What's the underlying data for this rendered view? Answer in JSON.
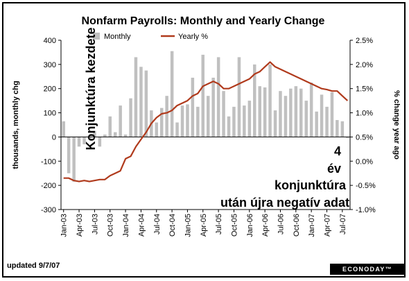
{
  "chart_data": {
    "type": "bar+line",
    "title": "Nonfarm Payrolls: Monthly and Yearly Change",
    "ylabel_left": "thousands, monthly chg",
    "ylabel_right": "% change year ago",
    "ylim_left": [
      -300,
      400
    ],
    "ylim_right": [
      -1.0,
      2.5
    ],
    "yticks_left": [
      "400",
      "300",
      "200",
      "100",
      "0",
      "-100",
      "-200",
      "-300"
    ],
    "yticks_right": [
      "2.5%",
      "2.0%",
      "1.5%",
      "1.0%",
      "0.5%",
      "0.0%",
      "-0.5%",
      "-1.0%"
    ],
    "legend": [
      "Monthly",
      "Yearly %"
    ],
    "legend_position": "top",
    "x_tick_labels": [
      "Jan-03",
      "Apr-03",
      "Jul-03",
      "Oct-03",
      "Jan-04",
      "Apr-04",
      "Jul-04",
      "Oct-04",
      "Jan-05",
      "Apr-05",
      "Jul-05",
      "Oct-05",
      "Jan-06",
      "Apr-06",
      "Jul-06",
      "Oct-06",
      "Jan-07",
      "Apr-07",
      "Jul-07"
    ],
    "months": [
      "Jan-03",
      "Feb-03",
      "Mar-03",
      "Apr-03",
      "May-03",
      "Jun-03",
      "Jul-03",
      "Aug-03",
      "Sep-03",
      "Oct-03",
      "Nov-03",
      "Dec-03",
      "Jan-04",
      "Feb-04",
      "Mar-04",
      "Apr-04",
      "May-04",
      "Jun-04",
      "Jul-04",
      "Aug-04",
      "Sep-04",
      "Oct-04",
      "Nov-04",
      "Dec-04",
      "Jan-05",
      "Feb-05",
      "Mar-05",
      "Apr-05",
      "May-05",
      "Jun-05",
      "Jul-05",
      "Aug-05",
      "Sep-05",
      "Oct-05",
      "Nov-05",
      "Dec-05",
      "Jan-06",
      "Feb-06",
      "Mar-06",
      "Apr-06",
      "May-06",
      "Jun-06",
      "Jul-06",
      "Aug-06",
      "Sep-06",
      "Oct-06",
      "Nov-06",
      "Dec-06",
      "Jan-07",
      "Feb-07",
      "Mar-07",
      "Apr-07",
      "May-07",
      "Jun-07",
      "Jul-07",
      "Aug-07"
    ],
    "series": [
      {
        "name": "Monthly",
        "kind": "bar",
        "color": "#c0c0c0",
        "values": [
          65,
          -150,
          -185,
          -40,
          -30,
          -10,
          25,
          -40,
          10,
          85,
          20,
          130,
          10,
          160,
          330,
          290,
          275,
          110,
          60,
          120,
          170,
          355,
          60,
          130,
          135,
          245,
          125,
          340,
          170,
          245,
          330,
          190,
          85,
          125,
          330,
          130,
          150,
          300,
          210,
          205,
          300,
          110,
          190,
          170,
          200,
          210,
          200,
          150,
          225,
          105,
          175,
          125,
          185,
          70,
          65,
          -4
        ]
      },
      {
        "name": "Yearly %",
        "kind": "line",
        "color": "#b03a1c",
        "values": [
          -0.35,
          -0.35,
          -0.4,
          -0.42,
          -0.4,
          -0.42,
          -0.4,
          -0.38,
          -0.38,
          -0.3,
          -0.25,
          -0.2,
          0.05,
          0.1,
          0.3,
          0.45,
          0.6,
          0.78,
          0.9,
          0.98,
          1.0,
          1.05,
          1.15,
          1.2,
          1.25,
          1.35,
          1.4,
          1.55,
          1.6,
          1.65,
          1.6,
          1.5,
          1.5,
          1.55,
          1.6,
          1.65,
          1.7,
          1.8,
          1.85,
          1.95,
          2.05,
          1.95,
          1.9,
          1.85,
          1.8,
          1.75,
          1.7,
          1.65,
          1.6,
          1.55,
          1.5,
          1.48,
          1.45,
          1.45,
          1.35,
          1.25
        ]
      }
    ],
    "annotations": [
      {
        "text": "Konjunktúra kezdete"
      },
      {
        "text": "4 év konjunktúra után újra negatív adat"
      }
    ],
    "grid": false
  },
  "footer": {
    "updated": "updated 9/7/07",
    "brand": "ECONODAY™"
  }
}
